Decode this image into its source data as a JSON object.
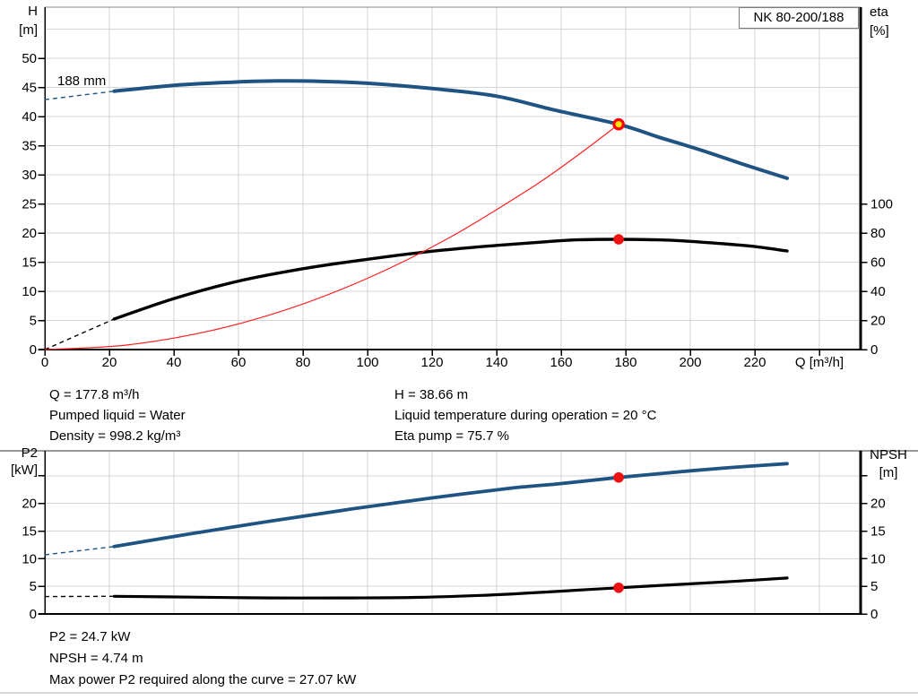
{
  "pump_model": "NK 80-200/188",
  "info_top": {
    "col1": [
      "Q = 177.8 m³/h",
      "Pumped liquid = Water",
      "Density = 998.2 kg/m³"
    ],
    "col2": [
      "H = 38.66 m",
      "Liquid temperature during operation = 20 °C",
      "Eta pump = 75.7 %"
    ]
  },
  "info_bottom": [
    "P2 = 24.7 kW",
    "NPSH = 4.74 m",
    "Max power P2 required along the curve = 27.07 kW"
  ],
  "colors": {
    "curve_blue": "#1f5382",
    "curve_black": "#000000",
    "curve_red": "#ff2020",
    "dot_red": "#ee1111",
    "marker_ring": "#ff0000",
    "marker_fill": "#ffe60a",
    "grid": "#d6d6d6",
    "axis": "#000000"
  },
  "chart_data": [
    {
      "type": "line",
      "title": "QH and efficiency curves",
      "x": {
        "label": "Q [m³/h]",
        "ticks": [
          0,
          20,
          40,
          60,
          80,
          100,
          120,
          140,
          160,
          180,
          200,
          220
        ],
        "grid_step": 20,
        "grid_max": 240,
        "label_at": 240,
        "show_tick_labels": true
      },
      "y_left": {
        "labels": [
          "H",
          "[m]"
        ],
        "ticks": [
          0,
          5,
          10,
          15,
          20,
          25,
          30,
          35,
          40,
          45,
          50
        ],
        "grid_max": 55
      },
      "y_right": {
        "labels": [
          "eta",
          "[%]"
        ],
        "ticks": [
          0,
          20,
          40,
          60,
          80,
          100
        ]
      },
      "series": [
        {
          "name": "head-curve",
          "label": "188 mm",
          "color": "#1f5382",
          "width": 4,
          "axis": "left",
          "dash": [
            [
              0,
              42.9
            ],
            [
              21.5,
              44.35
            ]
          ],
          "points": [
            [
              21.5,
              44.35
            ],
            [
              40,
              45.35
            ],
            [
              58,
              45.9
            ],
            [
              72,
              46.1
            ],
            [
              85,
              46.05
            ],
            [
              100,
              45.7
            ],
            [
              120,
              44.8
            ],
            [
              140,
              43.5
            ],
            [
              158,
              41.1
            ],
            [
              177.8,
              38.66
            ],
            [
              190,
              36.5
            ],
            [
              203,
              34.3
            ],
            [
              217,
              31.7
            ],
            [
              230,
              29.4
            ]
          ]
        },
        {
          "name": "efficiency-curve",
          "color": "#000000",
          "width": 3.4,
          "axis": "right",
          "dash": [
            [
              0,
              0
            ],
            [
              21.5,
              21
            ]
          ],
          "points": [
            [
              21.5,
              21
            ],
            [
              40,
              35
            ],
            [
              60,
              47
            ],
            [
              80,
              55.5
            ],
            [
              100,
              62
            ],
            [
              120,
              67.5
            ],
            [
              140,
              71.5
            ],
            [
              155,
              74
            ],
            [
              165,
              75.3
            ],
            [
              177.8,
              75.7
            ],
            [
              190,
              75.3
            ],
            [
              200,
              74.3
            ],
            [
              212,
              72.3
            ],
            [
              220,
              70.7
            ],
            [
              230,
              67.7
            ]
          ]
        },
        {
          "name": "system-curve",
          "color": "#ff2020",
          "width": 1.2,
          "axis": "left",
          "points": [
            [
              0,
              0
            ],
            [
              25,
              0.76
            ],
            [
              50,
              3.06
            ],
            [
              75,
              6.88
            ],
            [
              100,
              12.23
            ],
            [
              125,
              19.1
            ],
            [
              150,
              27.5
            ],
            [
              165,
              33.3
            ],
            [
              177.8,
              38.66
            ]
          ]
        }
      ],
      "markers": [
        {
          "name": "duty-point-marker",
          "q": 177.8,
          "v": 38.66,
          "axis": "left",
          "style": "ring"
        },
        {
          "name": "efficiency-point-marker",
          "q": 177.8,
          "v": 75.7,
          "axis": "right",
          "style": "dot"
        }
      ]
    },
    {
      "type": "line",
      "title": "P2 and NPSH curves",
      "x": {
        "grid_step": 20,
        "grid_max": 240,
        "show_tick_labels": false
      },
      "y_left": {
        "labels": [
          "P2",
          "[kW]"
        ],
        "ticks": [
          0,
          5,
          10,
          15,
          20
        ],
        "unlabeled_tick": 25,
        "grid_max": 25
      },
      "y_right": {
        "labels": [
          "NPSH",
          "[m]"
        ],
        "ticks": [
          0,
          5,
          10,
          15,
          20
        ],
        "unlabeled_tick": 25
      },
      "series": [
        {
          "name": "p2-curve",
          "color": "#1f5382",
          "width": 3.8,
          "axis": "left",
          "dash": [
            [
              0,
              10.7
            ],
            [
              21.5,
              12.2
            ]
          ],
          "points": [
            [
              21.5,
              12.2
            ],
            [
              45,
              14.5
            ],
            [
              70,
              16.8
            ],
            [
              95,
              19
            ],
            [
              120,
              21
            ],
            [
              145,
              22.8
            ],
            [
              160,
              23.6
            ],
            [
              177.8,
              24.7
            ],
            [
              200,
              25.9
            ],
            [
              215,
              26.6
            ],
            [
              230,
              27.2
            ]
          ]
        },
        {
          "name": "npsh-curve",
          "color": "#000000",
          "width": 3.2,
          "axis": "left",
          "dash": [
            [
              0,
              3.15
            ],
            [
              21.5,
              3.2
            ]
          ],
          "points": [
            [
              21.5,
              3.2
            ],
            [
              45,
              3.05
            ],
            [
              70,
              2.9
            ],
            [
              95,
              2.9
            ],
            [
              115,
              3
            ],
            [
              135,
              3.35
            ],
            [
              155,
              3.95
            ],
            [
              177.8,
              4.74
            ],
            [
              200,
              5.45
            ],
            [
              215,
              5.95
            ],
            [
              230,
              6.5
            ]
          ]
        }
      ],
      "markers": [
        {
          "name": "p2-point-marker",
          "q": 177.8,
          "v": 24.7,
          "axis": "left",
          "style": "dot"
        },
        {
          "name": "npsh-point-marker",
          "q": 177.8,
          "v": 4.74,
          "axis": "left",
          "style": "dot"
        }
      ]
    }
  ]
}
